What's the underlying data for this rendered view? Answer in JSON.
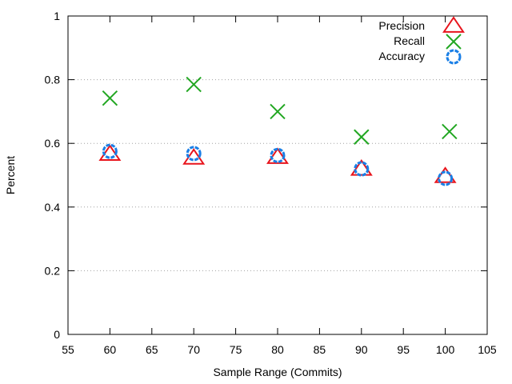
{
  "chart_data": {
    "type": "scatter",
    "xlabel": "Sample Range (Commits)",
    "ylabel": "Percent",
    "xlim": [
      55,
      105
    ],
    "ylim": [
      0,
      1
    ],
    "x_ticks": [
      "55",
      "60",
      "65",
      "70",
      "75",
      "80",
      "85",
      "90",
      "95",
      "100",
      "105"
    ],
    "y_ticks": [
      "0",
      "0.2",
      "0.4",
      "0.6",
      "0.8",
      "1"
    ],
    "x_tick_values": [
      55,
      60,
      65,
      70,
      75,
      80,
      85,
      90,
      95,
      100,
      105
    ],
    "y_tick_values": [
      0,
      0.2,
      0.4,
      0.6,
      0.8,
      1
    ],
    "grid": "horizontal dotted",
    "legend_position": "top-right",
    "series": [
      {
        "name": "Precision",
        "marker": "triangle",
        "color": "#e8141c",
        "x": [
          60,
          70,
          80,
          90,
          100
        ],
        "y": [
          0.565,
          0.553,
          0.555,
          0.518,
          0.495
        ]
      },
      {
        "name": "Recall",
        "marker": "cross",
        "color": "#22a722",
        "x": [
          60,
          70,
          80,
          90,
          100.5
        ],
        "y": [
          0.742,
          0.785,
          0.7,
          0.62,
          0.637
        ]
      },
      {
        "name": "Accuracy",
        "marker": "circle",
        "color": "#1a7fe6",
        "x": [
          60,
          70,
          80,
          90,
          100
        ],
        "y": [
          0.575,
          0.568,
          0.562,
          0.52,
          0.49
        ]
      }
    ]
  }
}
